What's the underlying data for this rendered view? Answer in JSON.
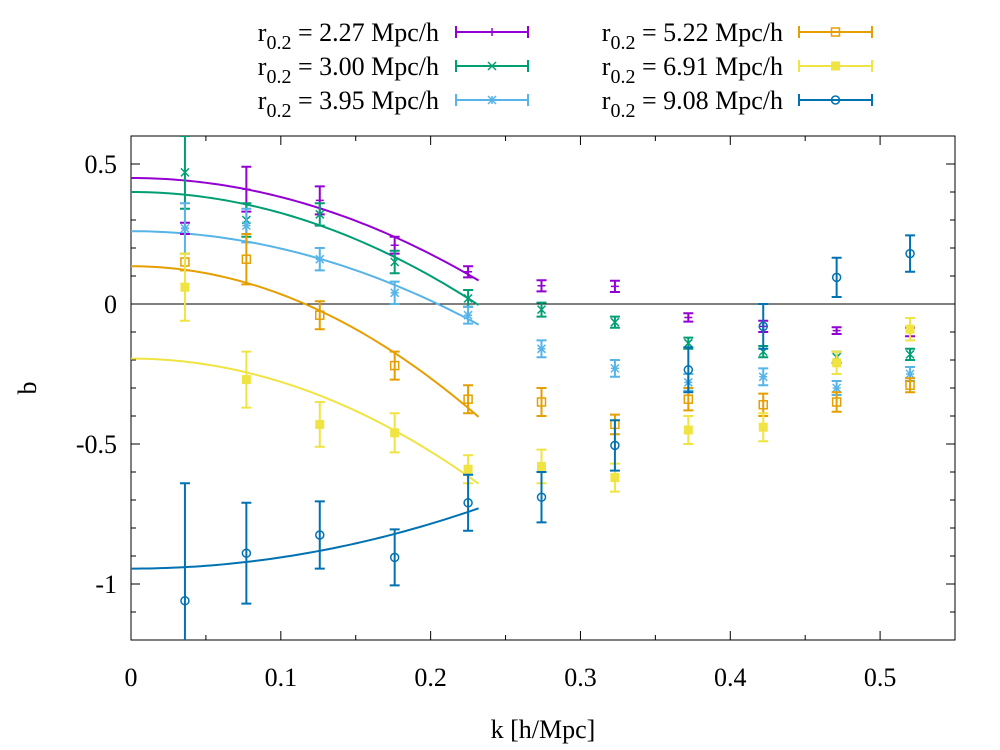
{
  "chart_data": {
    "type": "scatter",
    "xlabel": "k [h/Mpc]",
    "ylabel": "b",
    "xlim": [
      0,
      0.55
    ],
    "ylim": [
      -1.2,
      0.6
    ],
    "x_ticks": [
      0,
      0.1,
      0.2,
      0.3,
      0.4,
      0.5
    ],
    "x_tick_labels": [
      "0",
      "0.1",
      "0.2",
      "0.3",
      "0.4",
      "0.5"
    ],
    "y_ticks": [
      -1,
      -0.5,
      0,
      0.5
    ],
    "y_tick_labels": [
      "-1",
      "-0.5",
      "0",
      "0.5"
    ],
    "zero_line": true,
    "legend_placement": "top-outside",
    "series": [
      {
        "name": "r",
        "name_sub": "0.2",
        "name_rest": " = 2.27 Mpc/h",
        "color": "#9400d3",
        "marker": "plus",
        "points": [
          {
            "x": 0.036,
            "y": 0.27,
            "err": 0.02
          },
          {
            "x": 0.077,
            "y": 0.41,
            "err": 0.08
          },
          {
            "x": 0.126,
            "y": 0.37,
            "err": 0.05
          },
          {
            "x": 0.176,
            "y": 0.21,
            "err": 0.03
          },
          {
            "x": 0.225,
            "y": 0.115,
            "err": 0.02
          },
          {
            "x": 0.274,
            "y": 0.065,
            "err": 0.02
          },
          {
            "x": 0.323,
            "y": 0.063,
            "err": 0.02
          },
          {
            "x": 0.372,
            "y": -0.048,
            "err": 0.015
          },
          {
            "x": 0.422,
            "y": -0.08,
            "err": 0.02
          },
          {
            "x": 0.471,
            "y": -0.095,
            "err": 0.012
          },
          {
            "x": 0.52,
            "y": -0.1,
            "err": 0.015
          }
        ],
        "fit": {
          "y0": 0.45,
          "curv": -6.8,
          "xmax": 0.232
        }
      },
      {
        "name": "r",
        "name_sub": "0.2",
        "name_rest": " = 3.00 Mpc/h",
        "color": "#009e73",
        "marker": "cross",
        "points": [
          {
            "x": 0.036,
            "y": 0.47,
            "err": 0.13
          },
          {
            "x": 0.077,
            "y": 0.3,
            "err": 0.06
          },
          {
            "x": 0.126,
            "y": 0.32,
            "err": 0.04
          },
          {
            "x": 0.176,
            "y": 0.15,
            "err": 0.04
          },
          {
            "x": 0.225,
            "y": 0.02,
            "err": 0.03
          },
          {
            "x": 0.274,
            "y": -0.02,
            "err": 0.025
          },
          {
            "x": 0.323,
            "y": -0.065,
            "err": 0.02
          },
          {
            "x": 0.372,
            "y": -0.14,
            "err": 0.02
          },
          {
            "x": 0.422,
            "y": -0.17,
            "err": 0.02
          },
          {
            "x": 0.471,
            "y": -0.19,
            "err": 0.02
          },
          {
            "x": 0.52,
            "y": -0.18,
            "err": 0.02
          }
        ],
        "fit": {
          "y0": 0.4,
          "curv": -7.5,
          "xmax": 0.232
        }
      },
      {
        "name": "r",
        "name_sub": "0.2",
        "name_rest": " = 3.95 Mpc/h",
        "color": "#56b4e9",
        "marker": "star",
        "points": [
          {
            "x": 0.036,
            "y": 0.27,
            "err": 0.09
          },
          {
            "x": 0.077,
            "y": 0.28,
            "err": 0.06
          },
          {
            "x": 0.126,
            "y": 0.16,
            "err": 0.04
          },
          {
            "x": 0.176,
            "y": 0.04,
            "err": 0.04
          },
          {
            "x": 0.225,
            "y": -0.04,
            "err": 0.03
          },
          {
            "x": 0.274,
            "y": -0.16,
            "err": 0.03
          },
          {
            "x": 0.323,
            "y": -0.23,
            "err": 0.03
          },
          {
            "x": 0.372,
            "y": -0.28,
            "err": 0.03
          },
          {
            "x": 0.422,
            "y": -0.26,
            "err": 0.03
          },
          {
            "x": 0.471,
            "y": -0.3,
            "err": 0.025
          },
          {
            "x": 0.52,
            "y": -0.25,
            "err": 0.025
          }
        ],
        "fit": {
          "y0": 0.26,
          "curv": -6.2,
          "xmax": 0.232
        }
      },
      {
        "name": "r",
        "name_sub": "0.2",
        "name_rest": " = 5.22 Mpc/h",
        "color": "#e69f00",
        "marker": "square",
        "points": [
          {
            "x": 0.036,
            "y": 0.15,
            "err": 0.03
          },
          {
            "x": 0.077,
            "y": 0.16,
            "err": 0.09
          },
          {
            "x": 0.126,
            "y": -0.04,
            "err": 0.05
          },
          {
            "x": 0.176,
            "y": -0.22,
            "err": 0.05
          },
          {
            "x": 0.225,
            "y": -0.34,
            "err": 0.05
          },
          {
            "x": 0.274,
            "y": -0.35,
            "err": 0.05
          },
          {
            "x": 0.323,
            "y": -0.43,
            "err": 0.035
          },
          {
            "x": 0.372,
            "y": -0.34,
            "err": 0.04
          },
          {
            "x": 0.422,
            "y": -0.36,
            "err": 0.04
          },
          {
            "x": 0.471,
            "y": -0.35,
            "err": 0.035
          },
          {
            "x": 0.52,
            "y": -0.29,
            "err": 0.025
          }
        ],
        "fit": {
          "y0": 0.135,
          "curv": -10.0,
          "xmax": 0.232
        }
      },
      {
        "name": "r",
        "name_sub": "0.2",
        "name_rest": " = 6.91 Mpc/h",
        "color": "#f0e442",
        "marker": "filled-square",
        "points": [
          {
            "x": 0.036,
            "y": 0.06,
            "err": 0.12
          },
          {
            "x": 0.077,
            "y": -0.27,
            "err": 0.1
          },
          {
            "x": 0.126,
            "y": -0.43,
            "err": 0.08
          },
          {
            "x": 0.176,
            "y": -0.46,
            "err": 0.07
          },
          {
            "x": 0.225,
            "y": -0.59,
            "err": 0.05
          },
          {
            "x": 0.274,
            "y": -0.58,
            "err": 0.06
          },
          {
            "x": 0.323,
            "y": -0.62,
            "err": 0.05
          },
          {
            "x": 0.372,
            "y": -0.45,
            "err": 0.05
          },
          {
            "x": 0.422,
            "y": -0.44,
            "err": 0.05
          },
          {
            "x": 0.471,
            "y": -0.21,
            "err": 0.04
          },
          {
            "x": 0.52,
            "y": -0.09,
            "err": 0.04
          }
        ],
        "fit": {
          "y0": -0.195,
          "curv": -8.3,
          "xmax": 0.232
        }
      },
      {
        "name": "r",
        "name_sub": "0.2",
        "name_rest": " = 9.08 Mpc/h",
        "color": "#0072b2",
        "marker": "circle",
        "points": [
          {
            "x": 0.036,
            "y": -1.06,
            "err": 0.42
          },
          {
            "x": 0.077,
            "y": -0.89,
            "err": 0.18
          },
          {
            "x": 0.126,
            "y": -0.825,
            "err": 0.12
          },
          {
            "x": 0.176,
            "y": -0.905,
            "err": 0.1
          },
          {
            "x": 0.225,
            "y": -0.71,
            "err": 0.1
          },
          {
            "x": 0.274,
            "y": -0.69,
            "err": 0.09
          },
          {
            "x": 0.323,
            "y": -0.505,
            "err": 0.09
          },
          {
            "x": 0.372,
            "y": -0.235,
            "err": 0.08
          },
          {
            "x": 0.422,
            "y": -0.08,
            "err": 0.08
          },
          {
            "x": 0.471,
            "y": 0.095,
            "err": 0.07
          },
          {
            "x": 0.52,
            "y": 0.18,
            "err": 0.065
          }
        ],
        "fit": {
          "y0": -0.945,
          "curv": 4.0,
          "xmax": 0.232
        }
      }
    ]
  }
}
